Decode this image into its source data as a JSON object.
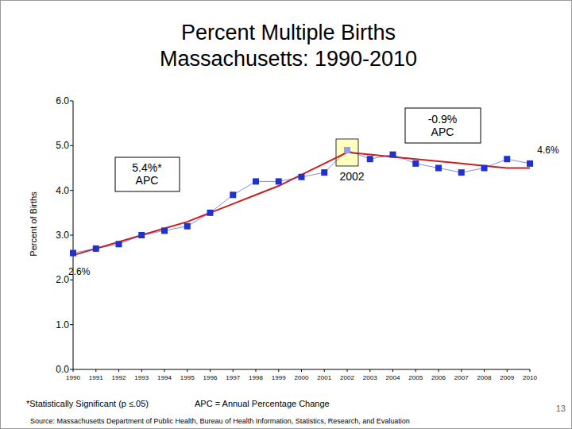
{
  "chart_data": {
    "type": "line",
    "title": "Percent Multiple Births",
    "subtitle": "Massachusetts: 1990-2010",
    "y_label": "Percent of Births",
    "categories": [
      "1990",
      "1991",
      "1992",
      "1993",
      "1994",
      "1995",
      "1996",
      "1997",
      "1998",
      "1999",
      "2000",
      "2001",
      "2002",
      "2003",
      "2004",
      "2005",
      "2006",
      "2007",
      "2008",
      "2009",
      "2010"
    ],
    "series": [
      {
        "color": "#1f33cc",
        "marker": "square",
        "line_style": "solid",
        "values": [
          2.6,
          2.7,
          2.8,
          3.0,
          3.1,
          3.2,
          3.5,
          3.9,
          4.2,
          4.2,
          4.3,
          4.4,
          4.9,
          4.7,
          4.8,
          4.6,
          4.5,
          4.4,
          4.5,
          4.7,
          4.6
        ]
      },
      {
        "color": "#cc2020",
        "marker": "none",
        "line_style": "solid",
        "values": [
          2.55,
          2.7,
          2.85,
          3.0,
          3.15,
          3.3,
          3.5,
          3.7,
          3.9,
          4.1,
          4.35,
          4.6,
          4.85,
          4.8,
          4.75,
          4.7,
          4.65,
          4.6,
          4.55,
          4.5,
          4.5
        ]
      }
    ],
    "ylim": [
      0,
      6
    ],
    "yticks": [
      {
        "value": 0,
        "label": "0.0"
      },
      {
        "value": 1,
        "label": "1.0"
      },
      {
        "value": 2,
        "label": "2.0"
      },
      {
        "value": 3,
        "label": "3.0"
      },
      {
        "value": 4,
        "label": "4.0"
      },
      {
        "value": 5,
        "label": "5.0"
      },
      {
        "value": 6,
        "label": "6.0"
      }
    ],
    "grid": false,
    "annotations": [
      {
        "text": "5.4%*\nAPC"
      },
      {
        "text": "-0.9%\nAPC"
      },
      {
        "text": "2002"
      },
      {
        "text": "2.6%"
      },
      {
        "text": "4.6%"
      }
    ],
    "footnotes": [
      "*Statistically Significant  (p ≤.05)",
      "APC = Annual Percentage Change"
    ],
    "source": "Source:  Massachusetts Department of Public Health, Bureau of Health Information, Statistics, Research, and Evaluation",
    "page_number": "13"
  }
}
